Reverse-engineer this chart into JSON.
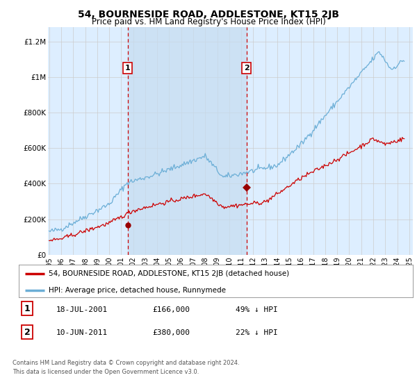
{
  "title": "54, BOURNESIDE ROAD, ADDLESTONE, KT15 2JB",
  "subtitle": "Price paid vs. HM Land Registry's House Price Index (HPI)",
  "ylabel_ticks": [
    "£0",
    "£200K",
    "£400K",
    "£600K",
    "£800K",
    "£1M",
    "£1.2M"
  ],
  "ytick_values": [
    0,
    200000,
    400000,
    600000,
    800000,
    1000000,
    1200000
  ],
  "ylim": [
    0,
    1280000
  ],
  "xlim_start": 1994.9,
  "xlim_end": 2025.3,
  "background_color": "#ffffff",
  "plot_bg_color": "#ddeeff",
  "legend_label_red": "54, BOURNESIDE ROAD, ADDLESTONE, KT15 2JB (detached house)",
  "legend_label_blue": "HPI: Average price, detached house, Runnymede",
  "sale1_date": 2001.54,
  "sale1_price": 166000,
  "sale1_label": "1",
  "sale2_date": 2011.44,
  "sale2_price": 380000,
  "sale2_label": "2",
  "footer_line1": "Contains HM Land Registry data © Crown copyright and database right 2024.",
  "footer_line2": "This data is licensed under the Open Government Licence v3.0.",
  "table_row1": [
    "1",
    "18-JUL-2001",
    "£166,000",
    "49% ↓ HPI"
  ],
  "table_row2": [
    "2",
    "10-JUN-2011",
    "£380,000",
    "22% ↓ HPI"
  ],
  "hpi_color": "#6baed6",
  "price_color": "#cc0000",
  "sale_marker_color": "#990000",
  "dashed_line_color": "#cc0000",
  "shade_color": "#c6dcf0",
  "xtick_years": [
    1995,
    1996,
    1997,
    1998,
    1999,
    2000,
    2001,
    2002,
    2003,
    2004,
    2005,
    2006,
    2007,
    2008,
    2009,
    2010,
    2011,
    2012,
    2013,
    2014,
    2015,
    2016,
    2017,
    2018,
    2019,
    2020,
    2021,
    2022,
    2023,
    2024,
    2025
  ]
}
